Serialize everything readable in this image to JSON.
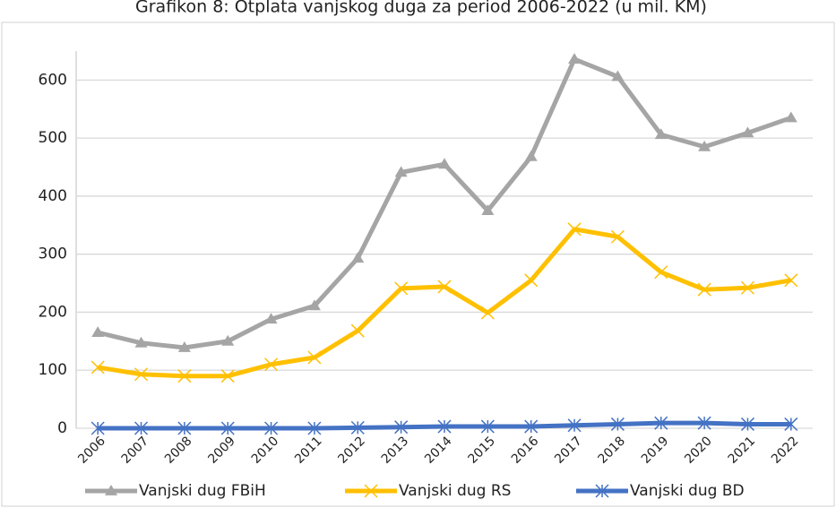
{
  "chart_data": {
    "type": "line",
    "title": "Grafikon 8: Otplata vanjskog duga za period 2006-2022 (u mil. KM)",
    "categories": [
      "2006",
      "2007",
      "2008",
      "2009",
      "2010",
      "2011",
      "2012",
      "2013",
      "2014",
      "2015",
      "2016",
      "2017",
      "2018",
      "2019",
      "2020",
      "2021",
      "2022"
    ],
    "series": [
      {
        "name": "Vanjski dug FBiH",
        "color": "#a5a5a5",
        "marker": "triangle",
        "values": [
          165,
          147,
          139,
          150,
          188,
          211,
          293,
          441,
          455,
          375,
          468,
          636,
          606,
          506,
          485,
          509,
          535
        ]
      },
      {
        "name": "Vanjski dug RS",
        "color": "#ffc000",
        "marker": "x",
        "values": [
          105,
          93,
          90,
          90,
          110,
          122,
          168,
          241,
          244,
          199,
          255,
          343,
          330,
          269,
          239,
          242,
          255
        ]
      },
      {
        "name": "Vanjski dug BD",
        "color": "#4472c4",
        "marker": "star",
        "values": [
          0,
          0,
          0,
          0,
          0,
          0,
          1,
          2,
          3,
          3,
          3,
          5,
          7,
          9,
          9,
          7,
          7
        ]
      }
    ],
    "ylim": [
      0,
      650
    ],
    "yticks": [
      0,
      100,
      200,
      300,
      400,
      500,
      600
    ],
    "grid": true,
    "legend": "bottom"
  }
}
